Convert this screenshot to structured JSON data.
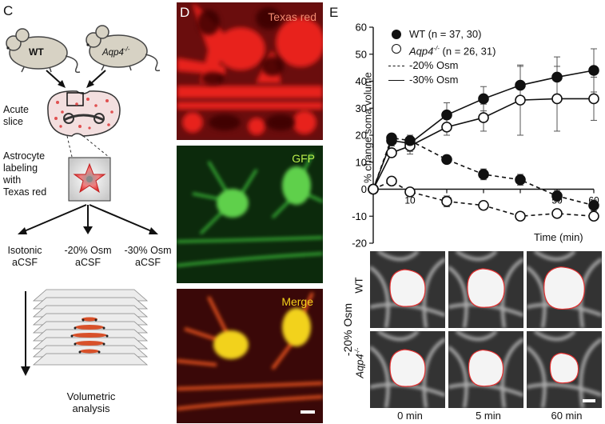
{
  "panels": {
    "c_letter": "C",
    "d_letter": "D",
    "e_letter": "E"
  },
  "schematic": {
    "mouse_wt": "WT",
    "mouse_ko_base": "Aqp4",
    "mouse_ko_sup": "-/-",
    "acute": "Acute",
    "slice": "slice",
    "labeling_lines": [
      "Astrocyte",
      "labeling",
      "with",
      "Texas red"
    ],
    "cond_isotonic": [
      "Isotonic",
      "aCSF"
    ],
    "cond_20": [
      "-20% Osm",
      "aCSF"
    ],
    "cond_30": [
      "-30% Osm",
      "aCSF"
    ],
    "volumetric": [
      "Volumetric",
      "analysis"
    ]
  },
  "micro_d": {
    "ch1": "Texas red",
    "ch2": "GFP",
    "ch3": "Merge",
    "colors": {
      "red": "#e8211c",
      "green": "#3ec13a",
      "yellow": "#f2d21a"
    }
  },
  "chart_data": {
    "type": "line",
    "title": "",
    "xlabel": "Time (min)",
    "ylabel": "% change soma volume",
    "xlim": [
      0,
      60
    ],
    "ylim": [
      -20,
      60
    ],
    "yticks": [
      -20,
      -10,
      0,
      10,
      20,
      30,
      40,
      50,
      60
    ],
    "xticks": [
      10,
      20,
      30,
      40,
      50,
      60
    ],
    "xtick_labels_shown": [
      "10",
      "20",
      "",
      "",
      "50",
      "60"
    ],
    "legend": [
      {
        "name": "WT (n = 37, 30)",
        "marker": "filled-circle"
      },
      {
        "name_base": "Aqp4",
        "name_sup": "-/-",
        "name_rest": " (n = 26, 31)",
        "marker": "open-circle"
      },
      {
        "name": "-20% Osm",
        "line": "dashed"
      },
      {
        "name": "-30% Osm",
        "line": "solid"
      }
    ],
    "legend_placement": "top-left",
    "series": [
      {
        "group": "WT",
        "condition": "-30% Osm",
        "marker": "filled",
        "line": "solid",
        "x": [
          0,
          5,
          10,
          20,
          30,
          40,
          50,
          60
        ],
        "y": [
          0,
          18,
          17,
          27.5,
          33.5,
          38.5,
          41.5,
          44
        ],
        "err": [
          0,
          2,
          3,
          4.5,
          4.5,
          7,
          7.5,
          8
        ]
      },
      {
        "group": "Aqp4-/-",
        "condition": "-30% Osm",
        "marker": "open",
        "line": "solid",
        "x": [
          0,
          5,
          10,
          20,
          30,
          40,
          50,
          60
        ],
        "y": [
          0,
          13.5,
          16,
          23,
          26.5,
          33,
          33.5,
          33.5
        ],
        "err": [
          0,
          1.5,
          3,
          3,
          5,
          13,
          12,
          8
        ]
      },
      {
        "group": "WT",
        "condition": "-20% Osm",
        "marker": "filled",
        "line": "dashed",
        "x": [
          0,
          5,
          10,
          20,
          30,
          40,
          50,
          60
        ],
        "y": [
          0,
          19,
          18,
          11,
          5.5,
          3.5,
          -2.5,
          -6
        ],
        "err": [
          0,
          1.5,
          2,
          1.5,
          2,
          2,
          2,
          2
        ]
      },
      {
        "group": "Aqp4-/-",
        "condition": "-20% Osm",
        "marker": "open",
        "line": "dashed",
        "x": [
          0,
          5,
          10,
          20,
          30,
          40,
          50,
          60
        ],
        "y": [
          0,
          3,
          -1,
          -4.5,
          -6,
          -10,
          -9,
          -10
        ],
        "err": [
          0,
          1,
          1,
          2,
          1.5,
          1,
          1.5,
          1.5
        ]
      }
    ]
  },
  "micro_e": {
    "row_wt": "WT",
    "row_ko_base": "Aqp4",
    "row_ko_sup": "-/-",
    "group_label": "-20% Osm",
    "times": [
      "0 min",
      "5 min",
      "60 min"
    ],
    "outline_color": "#e03030"
  }
}
